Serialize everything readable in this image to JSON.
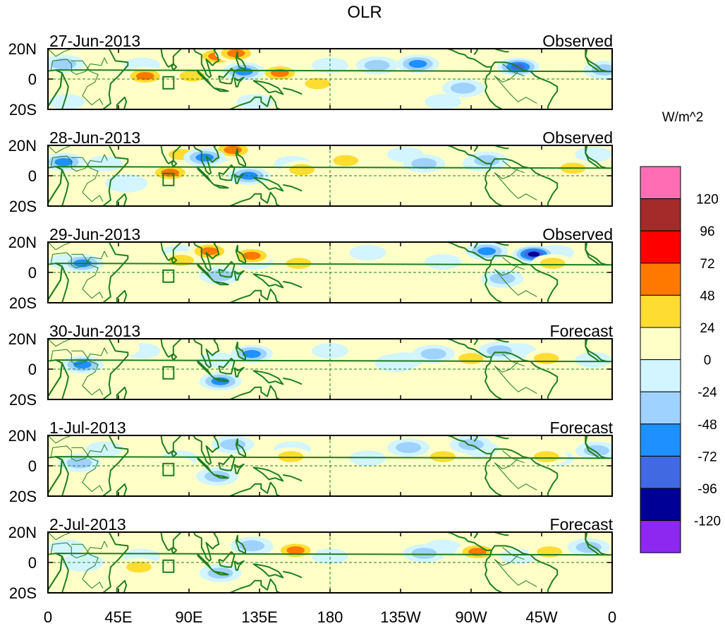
{
  "chart_data": {
    "type": "heatmap",
    "title": "OLR",
    "units_label": "W/m^2",
    "x_ticks": [
      "0",
      "45E",
      "90E",
      "135E",
      "180",
      "135W",
      "90W",
      "45W",
      "0"
    ],
    "y_ticks": [
      "20N",
      "0",
      "20S"
    ],
    "lon_range": [
      0,
      360
    ],
    "lat_range": [
      -20,
      20
    ],
    "colorbar": {
      "levels": [
        "120",
        "96",
        "72",
        "48",
        "24",
        "0",
        "-24",
        "-48",
        "-72",
        "-96",
        "-120"
      ],
      "colors": [
        "#ff6eb4",
        "#a52a2a",
        "#ff0000",
        "#ff7800",
        "#ffdc32",
        "#ffffc8",
        "#d2f5ff",
        "#a0d2ff",
        "#1e90ff",
        "#4169e1",
        "#000096",
        "#8c28f0"
      ]
    },
    "panels": [
      {
        "date": "27-Jun-2013",
        "status": "Observed"
      },
      {
        "date": "28-Jun-2013",
        "status": "Observed"
      },
      {
        "date": "29-Jun-2013",
        "status": "Observed"
      },
      {
        "date": "30-Jun-2013",
        "status": "Forecast"
      },
      {
        "date": "1-Jul-2013",
        "status": "Forecast"
      },
      {
        "date": "2-Jul-2013",
        "status": "Forecast"
      }
    ],
    "anomaly_blobs": [
      [
        {
          "lon": 62,
          "lat": 2,
          "v": 60
        },
        {
          "lon": 92,
          "lat": 2,
          "v": 48
        },
        {
          "lon": 108,
          "lat": 15,
          "v": 72
        },
        {
          "lon": 120,
          "lat": 17,
          "v": 60
        },
        {
          "lon": 148,
          "lat": 4,
          "v": 50
        },
        {
          "lon": 172,
          "lat": -3,
          "v": 40
        },
        {
          "lon": 10,
          "lat": 10,
          "v": -48
        },
        {
          "lon": 125,
          "lat": 5,
          "v": -50
        },
        {
          "lon": 300,
          "lat": 8,
          "v": -96
        },
        {
          "lon": 236,
          "lat": 10,
          "v": -72
        },
        {
          "lon": 210,
          "lat": 9,
          "v": -40
        },
        {
          "lon": 265,
          "lat": -6,
          "v": -30
        },
        {
          "lon": 330,
          "lat": 3,
          "v": 24
        },
        {
          "lon": 355,
          "lat": 6,
          "v": -48
        }
      ],
      [
        {
          "lon": 78,
          "lat": 2,
          "v": 60
        },
        {
          "lon": 85,
          "lat": 14,
          "v": 48
        },
        {
          "lon": 118,
          "lat": 17,
          "v": 72
        },
        {
          "lon": 162,
          "lat": 4,
          "v": 48
        },
        {
          "lon": 190,
          "lat": 10,
          "v": 30
        },
        {
          "lon": 10,
          "lat": 9,
          "v": -60
        },
        {
          "lon": 100,
          "lat": 12,
          "v": -60
        },
        {
          "lon": 128,
          "lat": 0,
          "v": -60
        },
        {
          "lon": 240,
          "lat": 8,
          "v": -48
        },
        {
          "lon": 280,
          "lat": 10,
          "v": -40
        },
        {
          "lon": 335,
          "lat": 5,
          "v": 36
        },
        {
          "lon": 50,
          "lat": -5,
          "v": -24
        }
      ],
      [
        {
          "lon": 85,
          "lat": 8,
          "v": 48
        },
        {
          "lon": 103,
          "lat": 14,
          "v": 60
        },
        {
          "lon": 160,
          "lat": 6,
          "v": 48
        },
        {
          "lon": 130,
          "lat": 11,
          "v": 60
        },
        {
          "lon": 310,
          "lat": 12,
          "v": -120
        },
        {
          "lon": 22,
          "lat": 6,
          "v": -60
        },
        {
          "lon": 280,
          "lat": 14,
          "v": -60
        },
        {
          "lon": 110,
          "lat": -2,
          "v": -48
        },
        {
          "lon": 290,
          "lat": -4,
          "v": -30
        },
        {
          "lon": 322,
          "lat": 6,
          "v": 30
        },
        {
          "lon": 352,
          "lat": 10,
          "v": 24
        }
      ],
      [
        {
          "lon": 130,
          "lat": 10,
          "v": -72
        },
        {
          "lon": 110,
          "lat": -8,
          "v": -72
        },
        {
          "lon": 22,
          "lat": 3,
          "v": -60
        },
        {
          "lon": 70,
          "lat": 0,
          "v": 24
        },
        {
          "lon": 45,
          "lat": 14,
          "v": 24
        },
        {
          "lon": 155,
          "lat": 6,
          "v": 24
        },
        {
          "lon": 318,
          "lat": 7,
          "v": 48
        },
        {
          "lon": 270,
          "lat": 7,
          "v": 30
        },
        {
          "lon": 246,
          "lat": 10,
          "v": -48
        },
        {
          "lon": 288,
          "lat": 12,
          "v": -48
        },
        {
          "lon": 222,
          "lat": 4,
          "v": -24
        }
      ],
      [
        {
          "lon": 108,
          "lat": -7,
          "v": -48
        },
        {
          "lon": 118,
          "lat": 14,
          "v": -40
        },
        {
          "lon": 155,
          "lat": 6,
          "v": 40
        },
        {
          "lon": 80,
          "lat": 0,
          "v": 24
        },
        {
          "lon": 318,
          "lat": 6,
          "v": 48
        },
        {
          "lon": 252,
          "lat": 6,
          "v": 48
        },
        {
          "lon": 270,
          "lat": 14,
          "v": -48
        },
        {
          "lon": 20,
          "lat": 2,
          "v": -40
        },
        {
          "lon": 350,
          "lat": 10,
          "v": -30
        },
        {
          "lon": 230,
          "lat": 12,
          "v": -30
        }
      ],
      [
        {
          "lon": 158,
          "lat": 8,
          "v": 72
        },
        {
          "lon": 110,
          "lat": -7,
          "v": -48
        },
        {
          "lon": 58,
          "lat": -3,
          "v": 30
        },
        {
          "lon": 274,
          "lat": 7,
          "v": 60
        },
        {
          "lon": 320,
          "lat": 7,
          "v": 30
        },
        {
          "lon": 240,
          "lat": 6,
          "v": -48
        },
        {
          "lon": 130,
          "lat": 11,
          "v": -48
        },
        {
          "lon": 90,
          "lat": 10,
          "v": 24
        },
        {
          "lon": 345,
          "lat": 10,
          "v": -30
        },
        {
          "lon": 22,
          "lat": 0,
          "v": -24
        }
      ]
    ]
  }
}
